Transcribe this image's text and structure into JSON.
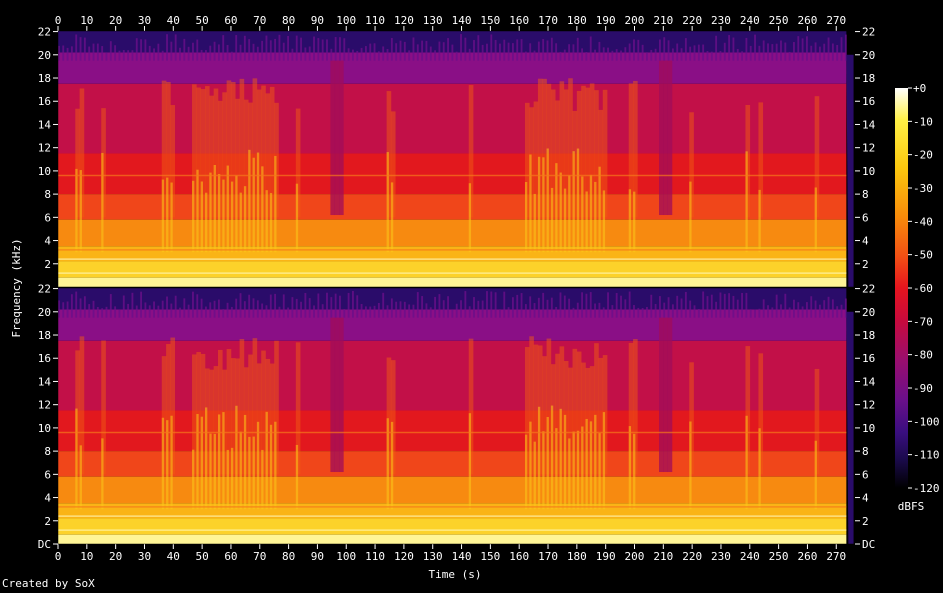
{
  "chart_data": {
    "type": "heatmap",
    "title": "",
    "xlabel": "Time (s)",
    "ylabel": "Frequency (kHz)",
    "x_ticks": [
      "0",
      "10",
      "20",
      "30",
      "40",
      "50",
      "60",
      "70",
      "80",
      "90",
      "100",
      "110",
      "120",
      "130",
      "140",
      "150",
      "160",
      "170",
      "180",
      "190",
      "200",
      "210",
      "220",
      "230",
      "240",
      "250",
      "260",
      "270"
    ],
    "x_tick_values": [
      0,
      10,
      20,
      30,
      40,
      50,
      60,
      70,
      80,
      90,
      100,
      110,
      120,
      130,
      140,
      150,
      160,
      170,
      180,
      190,
      200,
      210,
      220,
      230,
      240,
      250,
      260,
      270
    ],
    "xlim": [
      0,
      276.5
    ],
    "channels": [
      {
        "y_ticks_left": [
          "22",
          "20",
          "18",
          "16",
          "14",
          "12",
          "10",
          "8",
          "6",
          "4",
          "2"
        ],
        "y_ticks_right": [
          "22",
          "20",
          "18",
          "16",
          "14",
          "12",
          "10",
          "8",
          "6",
          "4",
          "2"
        ],
        "y_tick_values": [
          22,
          20,
          18,
          16,
          14,
          12,
          10,
          8,
          6,
          4,
          2
        ]
      },
      {
        "y_ticks_left": [
          "22",
          "20",
          "18",
          "16",
          "14",
          "12",
          "10",
          "8",
          "6",
          "4",
          "2",
          "DC"
        ],
        "y_ticks_right": [
          "22",
          "20",
          "18",
          "16",
          "14",
          "12",
          "10",
          "8",
          "6",
          "4",
          "2",
          "DC"
        ],
        "y_tick_values": [
          22,
          20,
          18,
          16,
          14,
          12,
          10,
          8,
          6,
          4,
          2,
          0
        ]
      }
    ],
    "ylim": [
      0,
      22.05
    ],
    "colorbar": {
      "label": "dBFS",
      "ticks": [
        "+0",
        "-10",
        "-20",
        "-30",
        "-40",
        "-50",
        "-60",
        "-70",
        "-80",
        "-90",
        "-100",
        "-110",
        "-120"
      ],
      "tick_values": [
        0,
        -10,
        -20,
        -30,
        -40,
        -50,
        -60,
        -70,
        -80,
        -90,
        -100,
        -110,
        -120
      ],
      "range": [
        -120,
        0
      ]
    },
    "colors": {
      "background": "#000000",
      "text": "#ffffff",
      "scale": [
        "#000000",
        "#1a0a4a",
        "#3a0e80",
        "#6a0f8a",
        "#9a0e6e",
        "#c80a3c",
        "#e6141e",
        "#f25014",
        "#f88c0a",
        "#fcc80e",
        "#fff046",
        "#ffffff"
      ]
    },
    "credit": "Created by SoX"
  }
}
